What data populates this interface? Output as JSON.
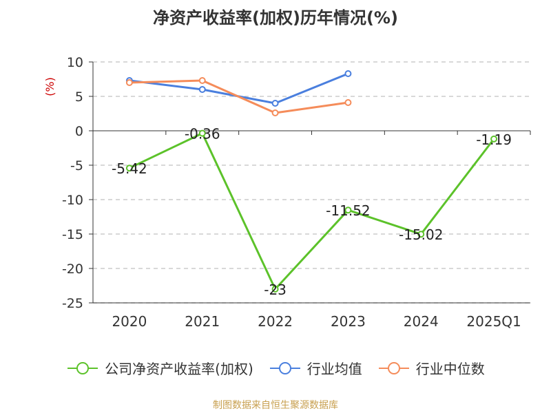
{
  "title": "净资产收益率(加权)历年情况(%)",
  "footer": "制图数据来自恒生聚源数据库",
  "chart_data": {
    "type": "line",
    "title": "净资产收益率(加权)历年情况(%)",
    "ylabel": "(%)",
    "xlabel": "",
    "categories": [
      "2020",
      "2021",
      "2022",
      "2023",
      "2024",
      "2025Q1"
    ],
    "ylim": [
      -25,
      10
    ],
    "yticks": [
      10,
      5,
      0,
      -5,
      -10,
      -15,
      -20,
      -25
    ],
    "grid": true,
    "legend_position": "bottom",
    "series": [
      {
        "name": "公司净资产收益率(加权)",
        "color": "#5cc22a",
        "values": [
          -5.42,
          -0.36,
          -23,
          -11.52,
          -15.02,
          -1.19
        ],
        "labels": [
          "-5.42",
          "-0.36",
          "-23",
          "-11.52",
          "-15.02",
          "-1.19"
        ]
      },
      {
        "name": "行业均值",
        "color": "#4a7fde",
        "values": [
          7.3,
          6.0,
          4.0,
          8.3,
          null,
          null
        ]
      },
      {
        "name": "行业中位数",
        "color": "#f58c5a",
        "values": [
          7.0,
          7.3,
          2.6,
          4.1,
          null,
          null
        ]
      }
    ]
  }
}
